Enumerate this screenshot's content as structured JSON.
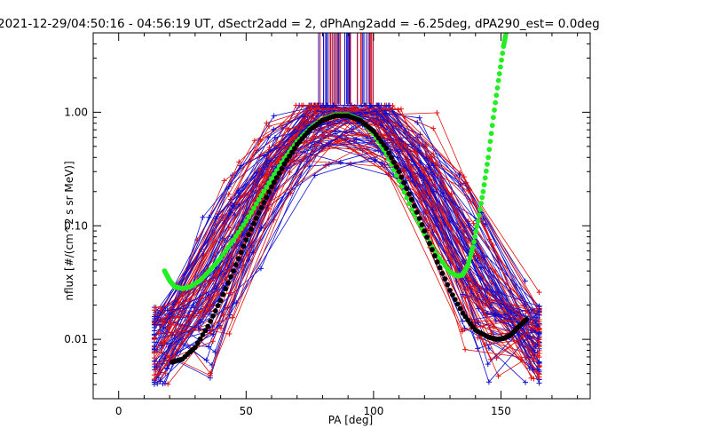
{
  "chart_data": {
    "type": "line",
    "title": "2021-12-29/04:50:16 - 04:56:19 UT, dSectr2add = 2, dPhAng2add = -6.25deg, dPA290_est=   0.0deg",
    "xlabel": "PA [deg]",
    "ylabel": "nflux [#/(cm^2 s sr MeV)]",
    "xlim": [
      -10,
      185
    ],
    "ylim": [
      0.003,
      5
    ],
    "yscale": "log",
    "grid": false,
    "x_ticks": [
      "0",
      "50",
      "100",
      "150"
    ],
    "x_tick_values": [
      0,
      50,
      100,
      150
    ],
    "y_ticks": [
      "1.00",
      "0.10",
      "0.01"
    ],
    "y_tick_values": [
      1.0,
      0.1,
      0.01
    ],
    "colors": {
      "red_traces": "#e01010",
      "blue_traces": "#1010d0",
      "green_fit": "#22ee22",
      "black_fit": "#000000"
    },
    "series": [
      {
        "color": "green",
        "x": [
          18,
          20,
          22,
          25,
          28,
          32,
          36,
          40,
          45,
          50,
          55,
          60,
          65,
          70,
          75,
          80,
          85,
          90,
          95,
          100,
          105,
          110,
          115,
          120,
          125,
          130,
          133,
          135,
          137,
          139,
          141,
          143,
          145,
          147,
          149,
          151,
          152
        ],
        "y": [
          0.04,
          0.033,
          0.029,
          0.028,
          0.029,
          0.033,
          0.041,
          0.052,
          0.075,
          0.11,
          0.17,
          0.26,
          0.39,
          0.55,
          0.72,
          0.86,
          0.95,
          0.95,
          0.85,
          0.65,
          0.43,
          0.25,
          0.14,
          0.085,
          0.055,
          0.039,
          0.036,
          0.037,
          0.045,
          0.065,
          0.11,
          0.2,
          0.4,
          0.9,
          1.9,
          3.8,
          5
        ]
      },
      {
        "color": "black",
        "x": [
          21,
          25,
          30,
          35,
          40,
          45,
          50,
          55,
          60,
          65,
          70,
          75,
          80,
          85,
          90,
          95,
          100,
          105,
          110,
          115,
          120,
          125,
          130,
          135,
          140,
          145,
          148,
          151,
          154,
          157,
          160
        ],
        "y": [
          0.0063,
          0.0067,
          0.0085,
          0.013,
          0.022,
          0.04,
          0.075,
          0.13,
          0.22,
          0.35,
          0.52,
          0.7,
          0.85,
          0.93,
          0.93,
          0.84,
          0.68,
          0.48,
          0.3,
          0.17,
          0.09,
          0.048,
          0.027,
          0.017,
          0.012,
          0.0105,
          0.01,
          0.0102,
          0.011,
          0.013,
          0.015
        ]
      }
    ]
  }
}
